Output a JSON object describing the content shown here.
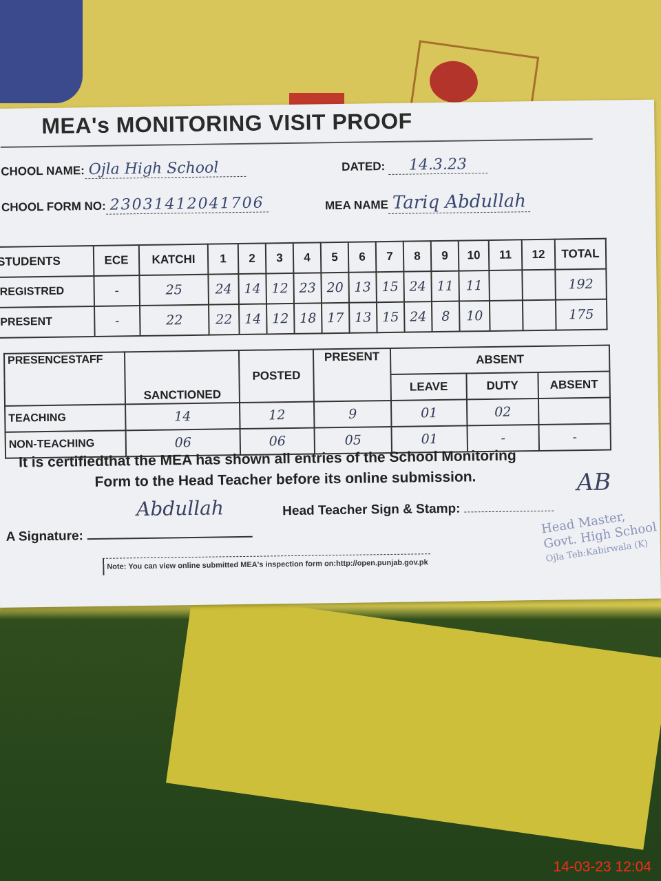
{
  "form": {
    "title": "MEA's MONITORING VISIT PROOF",
    "school_name_label": "CHOOL NAME:",
    "school_name_value": "Ojla High School",
    "dated_label": "DATED:",
    "dated_value": "14.3.23",
    "form_no_label": "CHOOL FORM NO:",
    "form_no_value": "23031412041706",
    "mea_name_label": "MEA NAME",
    "mea_name_value": "Tariq Abdullah"
  },
  "students_table": {
    "headers": [
      "STUDENTS",
      "ECE",
      "KATCHI",
      "1",
      "2",
      "3",
      "4",
      "5",
      "6",
      "7",
      "8",
      "9",
      "10",
      "11",
      "12",
      "TOTAL"
    ],
    "rows": [
      {
        "label": "REGISTRED",
        "cells": [
          "-",
          "25",
          "24",
          "14",
          "12",
          "23",
          "20",
          "13",
          "15",
          "24",
          "11",
          "11",
          "",
          "",
          "192"
        ]
      },
      {
        "label": "PRESENT",
        "cells": [
          "-",
          "22",
          "22",
          "14",
          "12",
          "18",
          "17",
          "13",
          "15",
          "24",
          "8",
          "10",
          "",
          "",
          "175"
        ]
      }
    ]
  },
  "staff_table": {
    "headers": {
      "label": "PRESENCESTAFF",
      "sanctioned": "SANCTIONED",
      "posted": "POSTED",
      "present": "PRESENT",
      "absent": "ABSENT",
      "leave": "LEAVE",
      "duty": "DUTY",
      "absent_sub": "ABSENT"
    },
    "rows": [
      {
        "label": "TEACHING",
        "cells": [
          "14",
          "12",
          "9",
          "01",
          "02",
          ""
        ]
      },
      {
        "label": "NON-TEACHING",
        "cells": [
          "06",
          "06",
          "05",
          "01",
          "-",
          "-"
        ]
      }
    ]
  },
  "certification": {
    "line1": "It is certifiedthat the MEA has shown all entries of the School Monitoring",
    "line2": "Form to the Head Teacher before its online submission."
  },
  "signatures": {
    "mea_label": "A Signature:",
    "mea_sign": "Abdullah",
    "head_label": "Head Teacher Sign & Stamp:",
    "head_sign": "AB"
  },
  "note": "Note: You can view online submitted MEA's inspection form on:http://open.punjab.gov.pk",
  "stamp": {
    "line1": "Head Master,",
    "line2": "Govt. High School",
    "line3": "Ojla Teh:Kabirwala (K)"
  },
  "timestamp": "14-03-23  12:04"
}
